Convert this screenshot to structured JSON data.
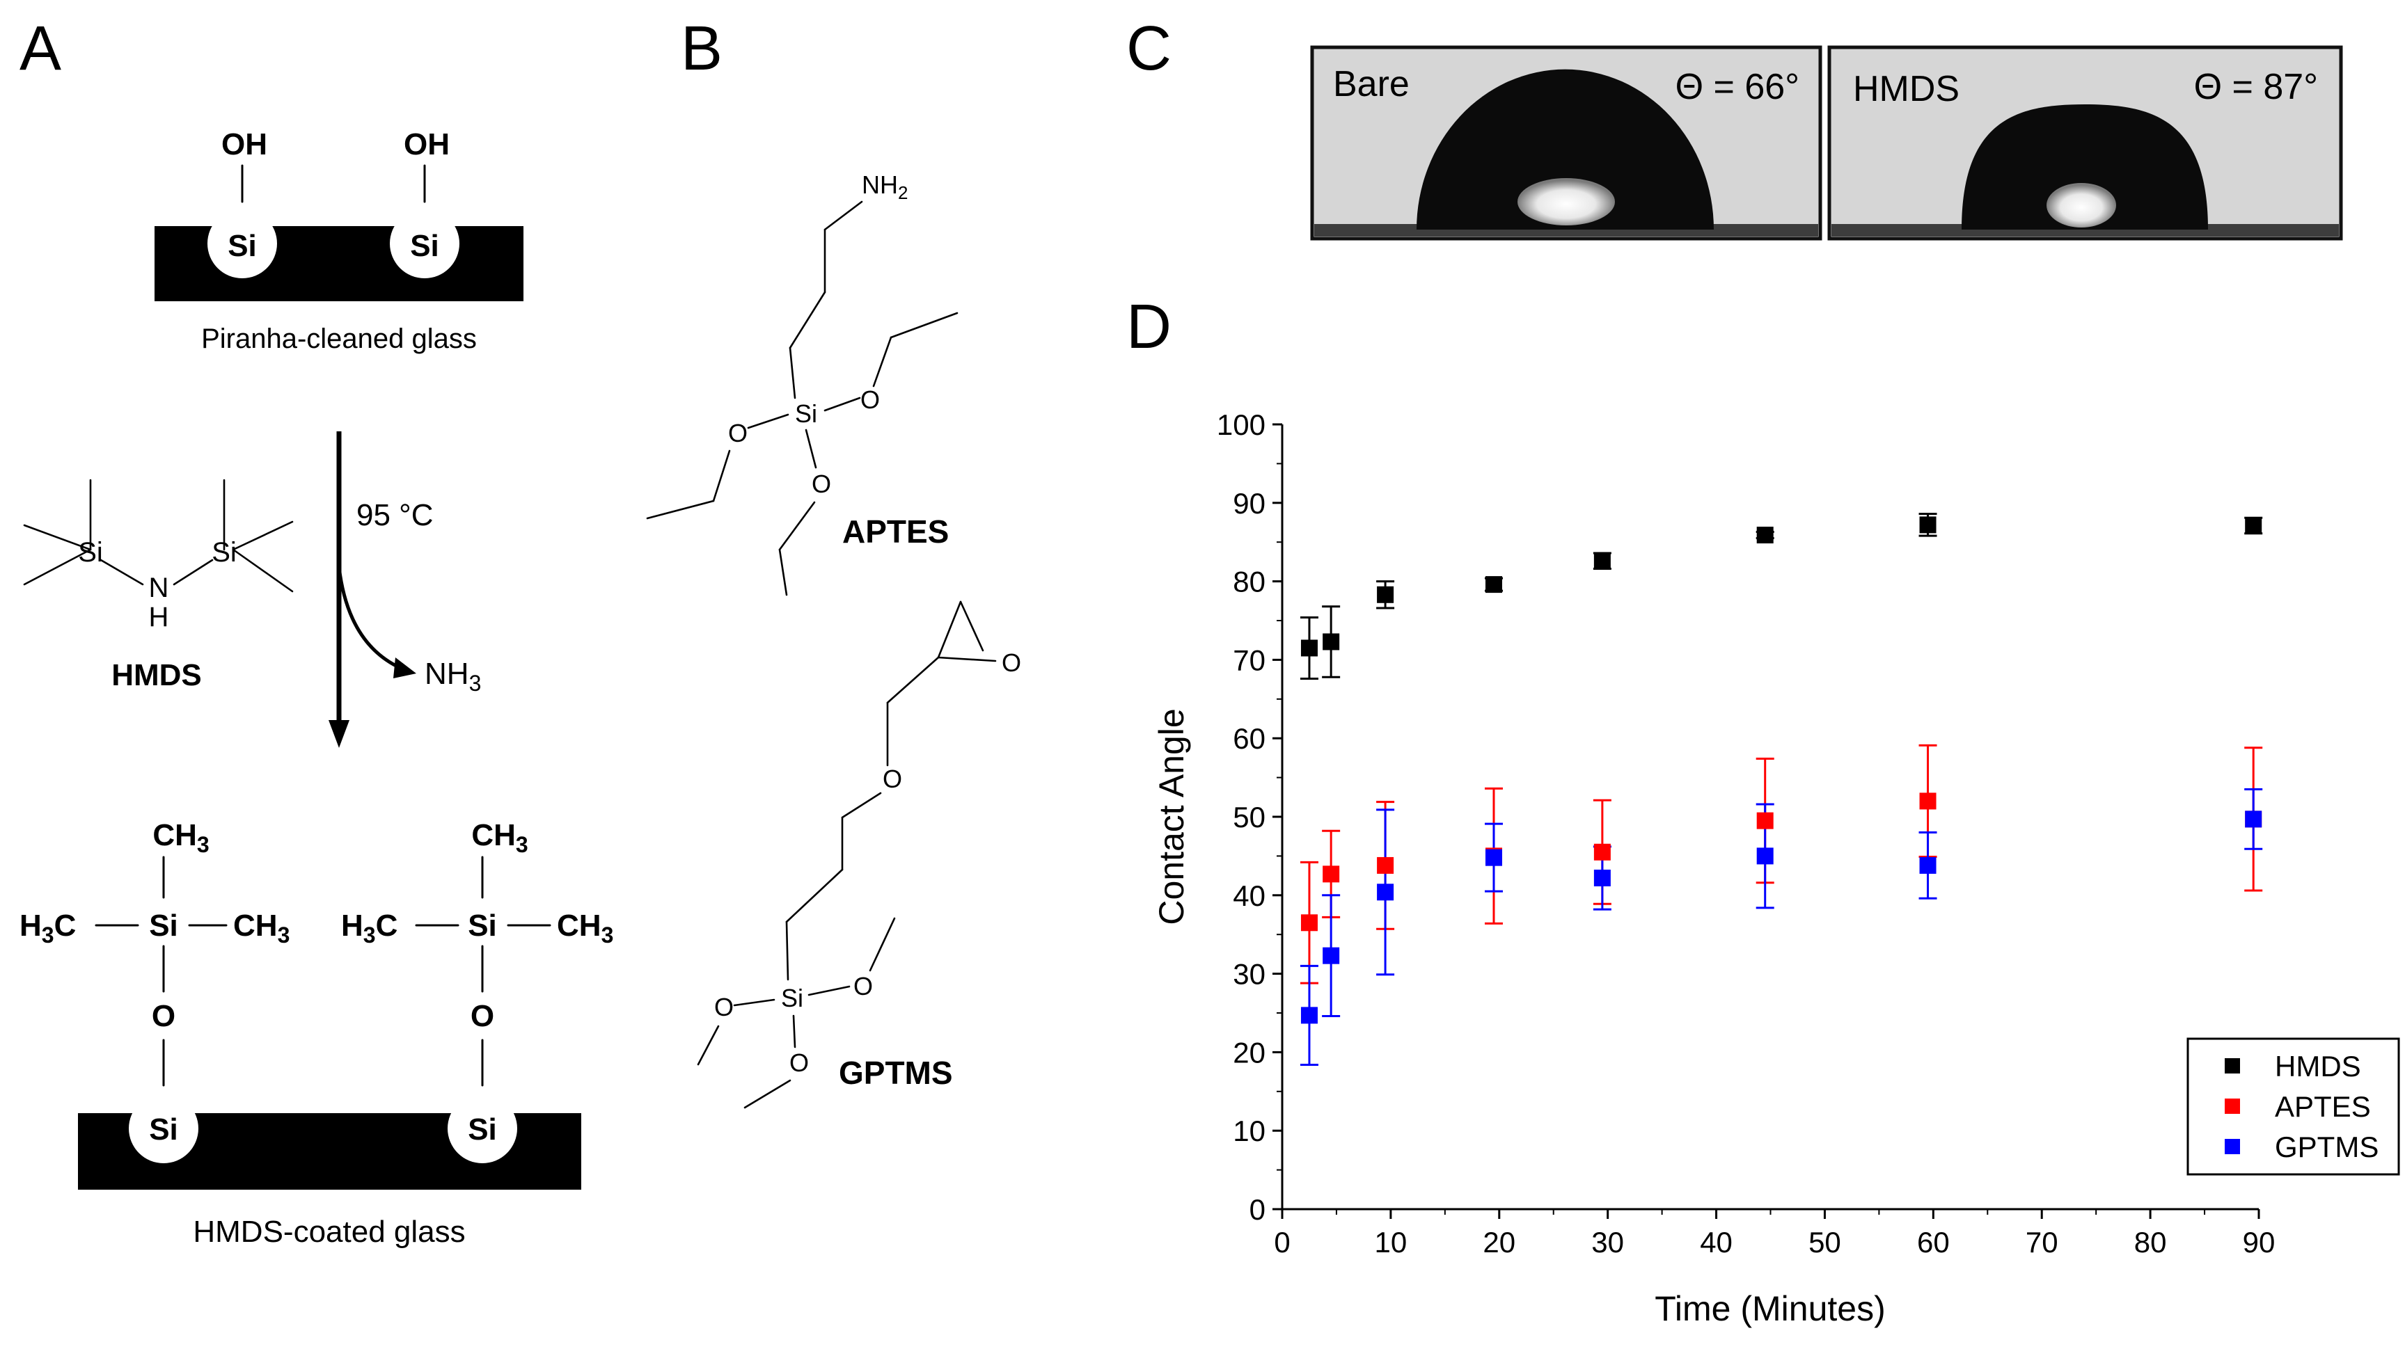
{
  "panels": {
    "a": "A",
    "b": "B",
    "c": "C",
    "d": "D"
  },
  "panel_a": {
    "oh_label": "OH",
    "si_label": "Si",
    "top_caption": "Piranha-cleaned glass",
    "temperature": "95 °C",
    "byproduct": "NH3",
    "hmds_label": "HMDS",
    "amine_n": "N",
    "amine_h": "H",
    "methyl": "CH3",
    "methyl_left": "H3C",
    "oxygen": "O",
    "bottom_caption": "HMDS-coated glass"
  },
  "panel_b": {
    "aptes_label": "APTES",
    "gptms_label": "GPTMS",
    "nh2": "NH2",
    "si": "Si",
    "o": "O"
  },
  "panel_c": {
    "bare_label": "Bare",
    "bare_angle": "Θ = 66°",
    "hmds_label": "HMDS",
    "hmds_angle": "Θ = 87°"
  },
  "chart_data": {
    "type": "scatter",
    "title": "",
    "xlabel": "Time (Minutes)",
    "ylabel": "Contact Angle",
    "xlim": [
      0,
      90
    ],
    "ylim": [
      0,
      100
    ],
    "xticks": [
      0,
      10,
      20,
      30,
      40,
      50,
      60,
      70,
      80,
      90
    ],
    "yticks": [
      0,
      10,
      20,
      30,
      40,
      50,
      60,
      70,
      80,
      90,
      100
    ],
    "legend_position": "bottom-right",
    "series": [
      {
        "name": "HMDS",
        "color": "#000000",
        "x": [
          2.5,
          4.5,
          9.5,
          19.5,
          29.5,
          44.5,
          59.5,
          89.5
        ],
        "y": [
          71.5,
          72.3,
          78.3,
          79.6,
          82.6,
          85.9,
          87.2,
          87.1
        ],
        "err": [
          3.9,
          4.5,
          1.7,
          0.8,
          1.0,
          0.4,
          1.4,
          1.0
        ]
      },
      {
        "name": "APTES",
        "color": "#ff0000",
        "x": [
          2.5,
          4.5,
          9.5,
          19.5,
          29.5,
          44.5,
          59.5,
          89.5
        ],
        "y": [
          36.5,
          42.7,
          43.8,
          45.0,
          45.5,
          49.5,
          52.0,
          49.7
        ],
        "err": [
          7.7,
          5.5,
          8.1,
          8.6,
          6.6,
          7.9,
          7.1,
          9.1
        ]
      },
      {
        "name": "GPTMS",
        "color": "#0000ff",
        "x": [
          2.5,
          4.5,
          9.5,
          19.5,
          29.5,
          44.5,
          59.5,
          89.5
        ],
        "y": [
          24.7,
          32.3,
          40.4,
          44.8,
          42.2,
          45.0,
          43.8,
          49.7
        ],
        "err": [
          6.3,
          7.7,
          10.5,
          4.3,
          4.0,
          6.6,
          4.2,
          3.8
        ]
      }
    ]
  }
}
